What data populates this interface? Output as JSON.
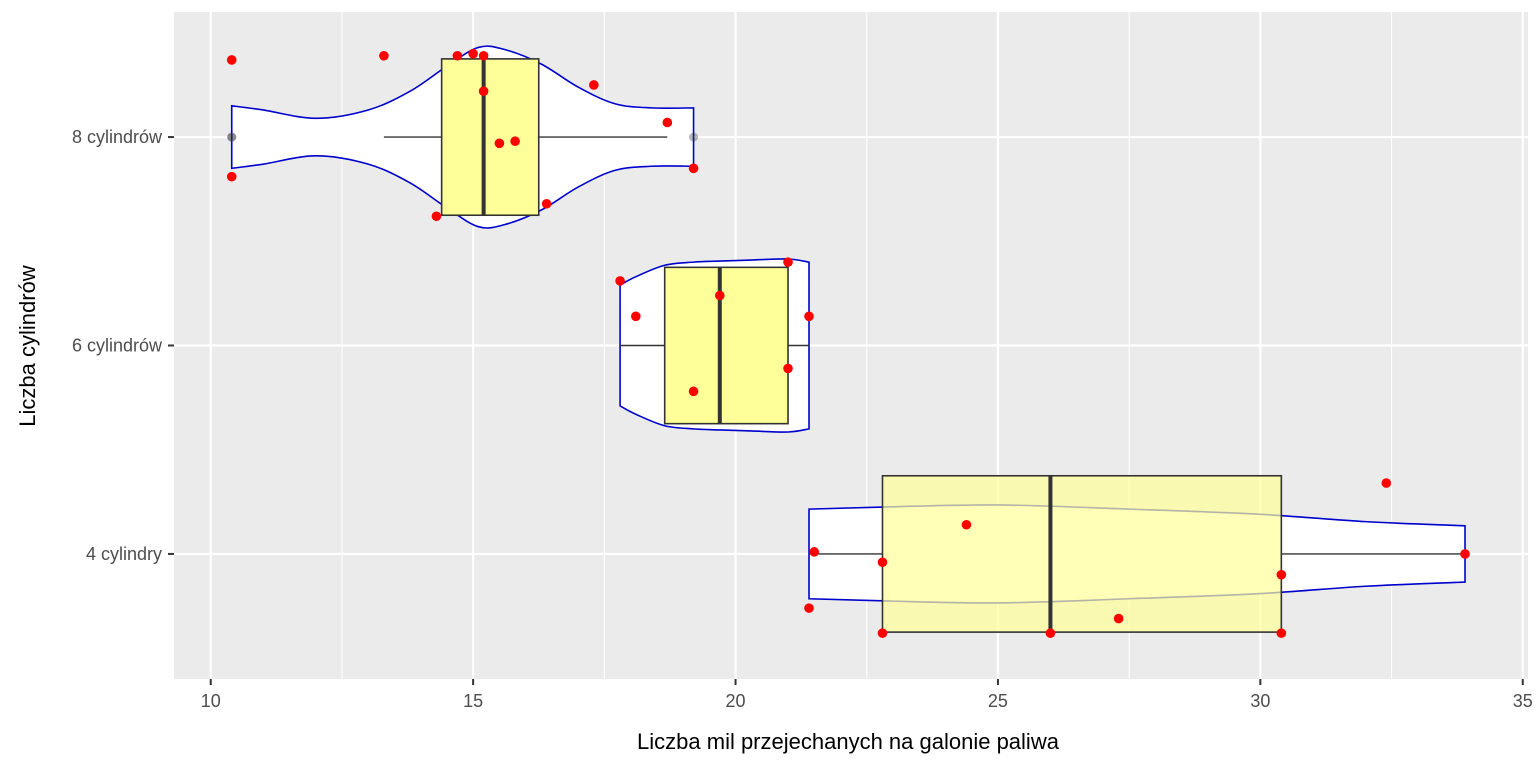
{
  "chart_data": {
    "type": "violin-box-jitter",
    "orientation": "horizontal",
    "title": "",
    "xlabel": "Liczba mil przejechanych na galonie paliwa",
    "ylabel": "Liczba cylindrów",
    "xlim": [
      9.3,
      35.1
    ],
    "x_ticks": [
      10,
      15,
      20,
      25,
      30,
      35
    ],
    "x_tick_labels": [
      "10",
      "15",
      "20",
      "25",
      "30",
      "35"
    ],
    "categories": [
      "4 cylindry",
      "6 cylindrów",
      "8 cylindrów"
    ],
    "grid": true,
    "colors": {
      "panel": "#ebebeb",
      "grid": "#ffffff",
      "violin_outline": "#0000cc",
      "violin_fill": "#ffffff",
      "box_fill": "#ffff99",
      "box_outline": "#333333",
      "points": "#ff0000"
    },
    "groups": [
      {
        "category": "4 cylindry",
        "box": {
          "whisker_low": 21.4,
          "q1": 22.8,
          "median": 26.0,
          "q3": 30.4,
          "whisker_high": 33.9
        },
        "box_alpha": 0.7,
        "violin_range": [
          21.4,
          33.9
        ],
        "violin": [
          [
            21.4,
            0.215
          ],
          [
            22.8,
            0.225
          ],
          [
            25.0,
            0.235
          ],
          [
            27.5,
            0.215
          ],
          [
            30.0,
            0.19
          ],
          [
            32.0,
            0.155
          ],
          [
            33.9,
            0.135
          ]
        ],
        "points": [
          {
            "x": 21.5,
            "y_offset": 0.01
          },
          {
            "x": 21.4,
            "y_offset": -0.26
          },
          {
            "x": 22.8,
            "y_offset": -0.04
          },
          {
            "x": 22.8,
            "y_offset": -0.38
          },
          {
            "x": 24.4,
            "y_offset": 0.14
          },
          {
            "x": 26.0,
            "y_offset": -0.38
          },
          {
            "x": 27.3,
            "y_offset": -0.31
          },
          {
            "x": 30.4,
            "y_offset": -0.1
          },
          {
            "x": 30.4,
            "y_offset": -0.38
          },
          {
            "x": 32.4,
            "y_offset": 0.34
          },
          {
            "x": 33.9,
            "y_offset": 0.0
          }
        ]
      },
      {
        "category": "6 cylindrów",
        "box": {
          "whisker_low": 17.8,
          "q1": 18.65,
          "median": 19.7,
          "q3": 21.0,
          "whisker_high": 21.4
        },
        "box_alpha": 1.0,
        "violin_range": [
          17.8,
          21.4
        ],
        "violin": [
          [
            17.8,
            0.29
          ],
          [
            18.1,
            0.33
          ],
          [
            18.65,
            0.385
          ],
          [
            19.2,
            0.4
          ],
          [
            19.7,
            0.405
          ],
          [
            20.3,
            0.41
          ],
          [
            21.0,
            0.415
          ],
          [
            21.4,
            0.4
          ]
        ],
        "points": [
          {
            "x": 17.8,
            "y_offset": 0.31
          },
          {
            "x": 18.1,
            "y_offset": 0.14
          },
          {
            "x": 19.2,
            "y_offset": -0.22
          },
          {
            "x": 19.7,
            "y_offset": 0.24
          },
          {
            "x": 21.0,
            "y_offset": 0.4
          },
          {
            "x": 21.0,
            "y_offset": -0.11
          },
          {
            "x": 21.4,
            "y_offset": 0.14
          }
        ]
      },
      {
        "category": "8 cylindrów",
        "box": {
          "whisker_low": 13.3,
          "q1": 14.4,
          "median": 15.2,
          "q3": 16.25,
          "whisker_high": 18.7
        },
        "box_alpha": 1.0,
        "outliers": [
          10.4,
          10.4,
          19.2
        ],
        "violin_range": [
          10.4,
          19.2
        ],
        "violin": [
          [
            10.4,
            0.15
          ],
          [
            11.0,
            0.13
          ],
          [
            12.0,
            0.09
          ],
          [
            13.0,
            0.13
          ],
          [
            13.8,
            0.22
          ],
          [
            14.5,
            0.34
          ],
          [
            15.1,
            0.43
          ],
          [
            15.6,
            0.42
          ],
          [
            16.3,
            0.35
          ],
          [
            17.0,
            0.24
          ],
          [
            17.7,
            0.16
          ],
          [
            18.4,
            0.14
          ],
          [
            19.2,
            0.14
          ]
        ],
        "points": [
          {
            "x": 10.4,
            "y_offset": 0.37
          },
          {
            "x": 10.4,
            "y_offset": -0.19
          },
          {
            "x": 13.3,
            "y_offset": 0.39
          },
          {
            "x": 14.3,
            "y_offset": -0.38
          },
          {
            "x": 14.7,
            "y_offset": 0.39
          },
          {
            "x": 15.0,
            "y_offset": 0.4
          },
          {
            "x": 15.2,
            "y_offset": 0.39
          },
          {
            "x": 15.2,
            "y_offset": 0.22
          },
          {
            "x": 15.5,
            "y_offset": -0.03
          },
          {
            "x": 15.8,
            "y_offset": -0.02
          },
          {
            "x": 16.4,
            "y_offset": -0.32
          },
          {
            "x": 17.3,
            "y_offset": 0.25
          },
          {
            "x": 18.7,
            "y_offset": 0.07
          },
          {
            "x": 19.2,
            "y_offset": -0.15
          }
        ]
      }
    ]
  }
}
